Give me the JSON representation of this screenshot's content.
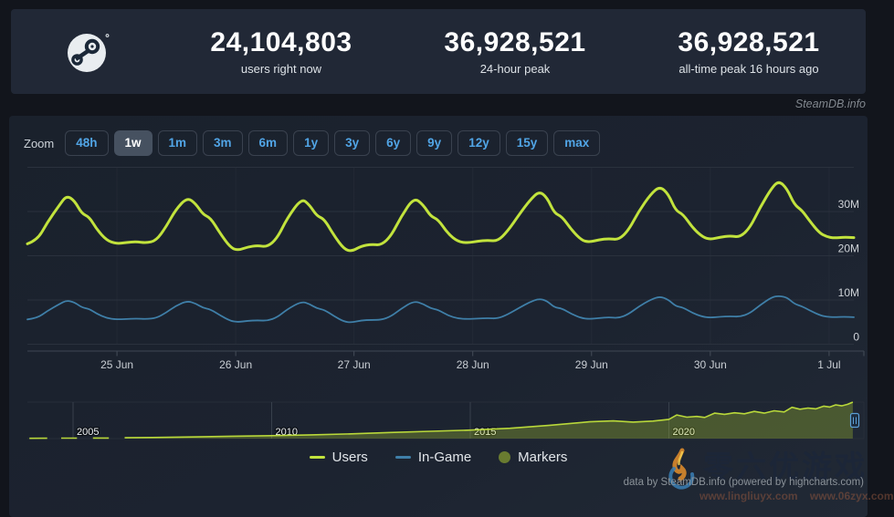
{
  "header": {
    "stats": [
      {
        "value": "24,104,803",
        "label": "users right now"
      },
      {
        "value": "36,928,521",
        "label": "24-hour peak"
      },
      {
        "value": "36,928,521",
        "label": "all-time peak 16 hours ago"
      }
    ],
    "brand": "SteamDB.info"
  },
  "toolbar": {
    "zoom_label": "Zoom",
    "buttons": [
      {
        "label": "48h",
        "selected": false
      },
      {
        "label": "1w",
        "selected": true
      },
      {
        "label": "1m",
        "selected": false
      },
      {
        "label": "3m",
        "selected": false
      },
      {
        "label": "6m",
        "selected": false
      },
      {
        "label": "1y",
        "selected": false
      },
      {
        "label": "3y",
        "selected": false
      },
      {
        "label": "6y",
        "selected": false
      },
      {
        "label": "9y",
        "selected": false
      },
      {
        "label": "12y",
        "selected": false
      },
      {
        "label": "15y",
        "selected": false
      },
      {
        "label": "max",
        "selected": false
      }
    ]
  },
  "chart_data": {
    "type": "line",
    "x_unit": "hours",
    "x_max": 167,
    "ylim": [
      0,
      40
    ],
    "grid_values": [
      40,
      30,
      20,
      10,
      0
    ],
    "yticks": [
      {
        "value": 30,
        "label": "30M"
      },
      {
        "value": 20,
        "label": "20M"
      },
      {
        "value": 10,
        "label": "10M"
      },
      {
        "value": 0,
        "label": "0"
      }
    ],
    "xticks": [
      {
        "hour": 18.1,
        "label": "25 Jun"
      },
      {
        "hour": 42.1,
        "label": "26 Jun"
      },
      {
        "hour": 66.0,
        "label": "27 Jun"
      },
      {
        "hour": 90.0,
        "label": "28 Jun"
      },
      {
        "hour": 114.0,
        "label": "29 Jun"
      },
      {
        "hour": 138.0,
        "label": "30 Jun"
      },
      {
        "hour": 162.0,
        "label": "1 Jul"
      }
    ],
    "hours": [
      0,
      2,
      4,
      6.5,
      7.9,
      9.5,
      11,
      12.5,
      14,
      16,
      18,
      20,
      22,
      24,
      26,
      28,
      30,
      32.3,
      34,
      35.5,
      37,
      39,
      41,
      42.5,
      44.5,
      46.5,
      48.5,
      50.5,
      52.5,
      55.4,
      57,
      58.5,
      60,
      62,
      64,
      65.5,
      67.5,
      69.5,
      71.5,
      73.5,
      75.5,
      78.1,
      80,
      81.5,
      83,
      85,
      87,
      89,
      91,
      93,
      95,
      97,
      99.5,
      101.5,
      103.4,
      105,
      106.5,
      108,
      110,
      112,
      113.5,
      115.5,
      117.5,
      119.5,
      121.5,
      123.5,
      126,
      127.8,
      129.5,
      131,
      132.5,
      134.5,
      136.5,
      138,
      140,
      142,
      144,
      146,
      148,
      150.5,
      151.9,
      153.5,
      155,
      156.5,
      158,
      160,
      161.5,
      163,
      165,
      167
    ],
    "series": [
      {
        "name": "Users",
        "color": "#c2e33d",
        "values": [
          22.7,
          23.5,
          27.5,
          31.5,
          33.6,
          32.5,
          29.5,
          28.8,
          26.0,
          23.5,
          22.7,
          23.0,
          23.2,
          22.9,
          23.4,
          26.5,
          30.5,
          33.2,
          31.8,
          29.3,
          28.6,
          25.0,
          21.9,
          21.2,
          22.0,
          22.3,
          22.0,
          24.0,
          28.5,
          33.0,
          31.5,
          29.0,
          28.3,
          24.5,
          21.5,
          21.0,
          22.2,
          22.6,
          22.4,
          24.5,
          28.8,
          33.2,
          31.5,
          28.9,
          28.2,
          25.0,
          23.2,
          22.9,
          23.3,
          23.5,
          23.3,
          25.5,
          29.5,
          32.5,
          34.6,
          33.2,
          29.6,
          28.9,
          25.8,
          23.5,
          23.1,
          23.6,
          23.9,
          23.6,
          25.8,
          30.0,
          34.0,
          35.7,
          34.0,
          30.2,
          29.4,
          26.2,
          24.2,
          23.7,
          24.2,
          24.5,
          24.2,
          26.3,
          30.8,
          35.5,
          36.9,
          35.2,
          31.5,
          30.3,
          28.0,
          25.2,
          24.3,
          24.0,
          24.2,
          24.1
        ]
      },
      {
        "name": "In-Game",
        "color": "#3f7fa8",
        "values": [
          5.6,
          5.9,
          7.5,
          9.1,
          9.9,
          9.5,
          8.3,
          8.0,
          6.9,
          5.9,
          5.6,
          5.7,
          5.8,
          5.7,
          5.9,
          7.1,
          8.7,
          9.8,
          9.2,
          8.2,
          7.9,
          6.5,
          5.3,
          5.0,
          5.3,
          5.4,
          5.3,
          6.1,
          7.9,
          9.7,
          9.1,
          8.1,
          7.8,
          6.3,
          5.1,
          4.9,
          5.4,
          5.5,
          5.5,
          6.3,
          8.0,
          9.8,
          9.1,
          8.1,
          7.8,
          6.5,
          5.8,
          5.7,
          5.8,
          5.9,
          5.8,
          6.7,
          8.3,
          9.5,
          10.3,
          9.8,
          8.3,
          8.1,
          6.8,
          5.9,
          5.7,
          5.9,
          6.1,
          5.9,
          6.8,
          8.5,
          10.1,
          10.8,
          10.1,
          8.6,
          8.3,
          7.0,
          6.2,
          6.0,
          6.2,
          6.3,
          6.2,
          7.0,
          8.8,
          10.7,
          10.9,
          10.6,
          9.1,
          8.6,
          7.7,
          6.6,
          6.2,
          6.1,
          6.2,
          6.1
        ]
      }
    ],
    "navigator": {
      "x_unit": "year",
      "points": [
        [
          2003.9,
          0.3
        ],
        [
          2004.35,
          0.4
        ],
        null,
        [
          2004.7,
          0.45
        ],
        [
          2005.1,
          0.5
        ],
        null,
        [
          2005.5,
          0.55
        ],
        [
          2005.9,
          0.6
        ],
        null,
        [
          2006.3,
          0.8
        ],
        [
          2007,
          1.1
        ],
        [
          2008,
          1.7
        ],
        [
          2009,
          2.4
        ],
        [
          2010,
          3.0
        ],
        [
          2011,
          3.8
        ],
        [
          2012,
          4.8
        ],
        [
          2013,
          6.2
        ],
        [
          2014,
          7.4
        ],
        [
          2015,
          8.6
        ],
        [
          2016,
          10.5
        ],
        [
          2017,
          13.5
        ],
        [
          2018,
          17.0
        ],
        [
          2018.6,
          18.0
        ],
        [
          2019.1,
          16.8
        ],
        [
          2019.6,
          17.8
        ],
        [
          2020.0,
          19.5
        ],
        [
          2020.2,
          24.0
        ],
        [
          2020.45,
          21.8
        ],
        [
          2020.7,
          22.5
        ],
        [
          2020.9,
          21.5
        ],
        [
          2021.15,
          25.8
        ],
        [
          2021.4,
          24.6
        ],
        [
          2021.65,
          26.2
        ],
        [
          2021.9,
          25.2
        ],
        [
          2022.15,
          27.6
        ],
        [
          2022.4,
          25.8
        ],
        [
          2022.65,
          28.2
        ],
        [
          2022.9,
          27.0
        ],
        [
          2023.1,
          31.8
        ],
        [
          2023.3,
          29.8
        ],
        [
          2023.5,
          31.0
        ],
        [
          2023.7,
          30.2
        ],
        [
          2023.9,
          33.0
        ],
        [
          2024.05,
          32.0
        ],
        [
          2024.2,
          34.3
        ],
        [
          2024.35,
          33.2
        ],
        [
          2024.5,
          34.8
        ],
        [
          2024.63,
          37.0
        ]
      ],
      "year_ticks": [
        {
          "year": 2005,
          "label": "2005"
        },
        {
          "year": 2010,
          "label": "2010"
        },
        {
          "year": 2015,
          "label": "2015"
        },
        {
          "year": 2020,
          "label": "2020"
        }
      ]
    }
  },
  "legend": [
    {
      "label": "Users",
      "color": "#c2e33d",
      "marker": "dash"
    },
    {
      "label": "In-Game",
      "color": "#3f7fa8",
      "marker": "dash"
    },
    {
      "label": "Markers",
      "color": "#697b30",
      "marker": "circle"
    }
  ],
  "footer": {
    "credits": "data by SteamDB.info (powered by highcharts.com)"
  },
  "watermark": {
    "text": "零六优游戏",
    "urls": "www.lingliuyx.com  www.06zyx.com"
  }
}
